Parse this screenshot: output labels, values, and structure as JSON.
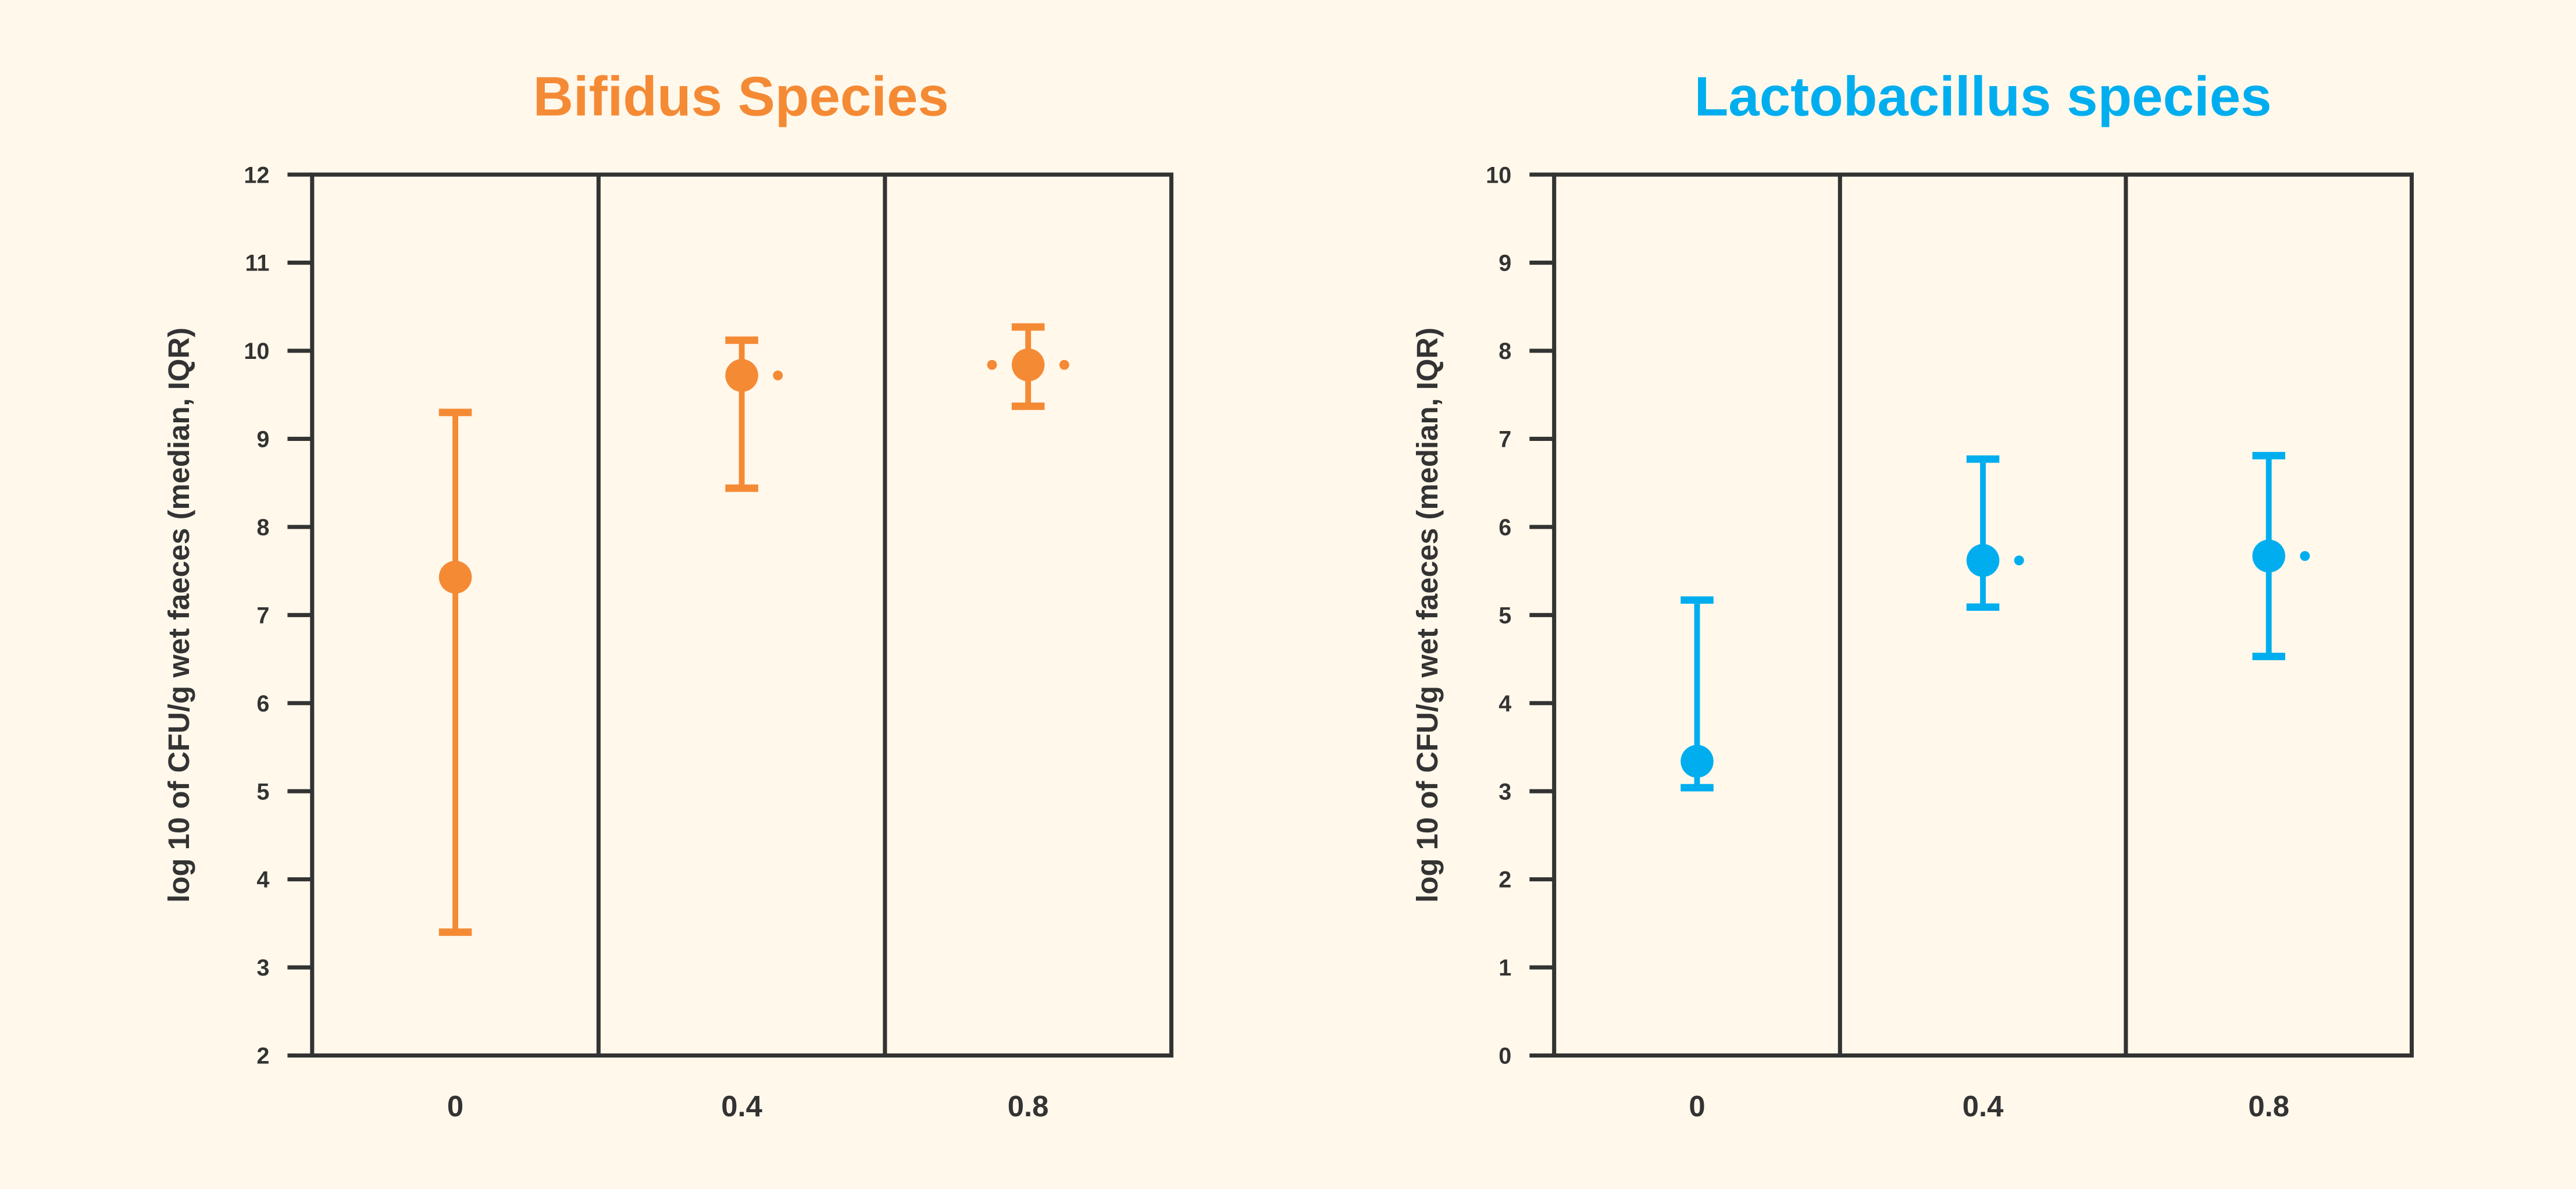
{
  "colors": {
    "background": "#FFF8EB",
    "axis": "#333333",
    "bifidus": "#F58A35",
    "lactobacillus": "#00AEEF"
  },
  "chart_data": [
    {
      "type": "scatter",
      "subtype": "median-iqr",
      "title": "Bifidus Species",
      "color": "#F58A35",
      "xlabel": "",
      "ylabel": "log 10 of CFU/g wet faeces (median, IQR)",
      "categories": [
        "0",
        "0.4",
        "0.8"
      ],
      "ylim": [
        2,
        12
      ],
      "yticks": [
        "2",
        "3",
        "4",
        "5",
        "6",
        "7",
        "8",
        "9",
        "10",
        "11",
        "12"
      ],
      "grid": false,
      "series": [
        {
          "name": "Bifidus Species",
          "median": [
            7.43,
            9.72,
            9.84
          ],
          "q1": [
            3.4,
            8.44,
            9.37
          ],
          "q3": [
            9.3,
            10.12,
            10.27
          ]
        }
      ],
      "annotations": [
        {
          "category": "0.4",
          "marker": "dot-right"
        },
        {
          "category": "0.8",
          "marker": "dots-both-sides"
        }
      ]
    },
    {
      "type": "scatter",
      "subtype": "median-iqr",
      "title": "Lactobacillus species",
      "color": "#00AEEF",
      "xlabel": "",
      "ylabel": "log 10 of CFU/g wet faeces (median, IQR)",
      "categories": [
        "0",
        "0.4",
        "0.8"
      ],
      "ylim": [
        0,
        10
      ],
      "yticks": [
        "0",
        "1",
        "2",
        "3",
        "4",
        "5",
        "6",
        "7",
        "8",
        "9",
        "10"
      ],
      "grid": false,
      "series": [
        {
          "name": "Lactobacillus species",
          "median": [
            3.34,
            5.62,
            5.67
          ],
          "q1": [
            3.04,
            5.09,
            4.53
          ],
          "q3": [
            5.17,
            6.77,
            6.81
          ]
        }
      ],
      "annotations": [
        {
          "category": "0.4",
          "marker": "dot-right"
        },
        {
          "category": "0.8",
          "marker": "dot-right"
        }
      ]
    }
  ]
}
